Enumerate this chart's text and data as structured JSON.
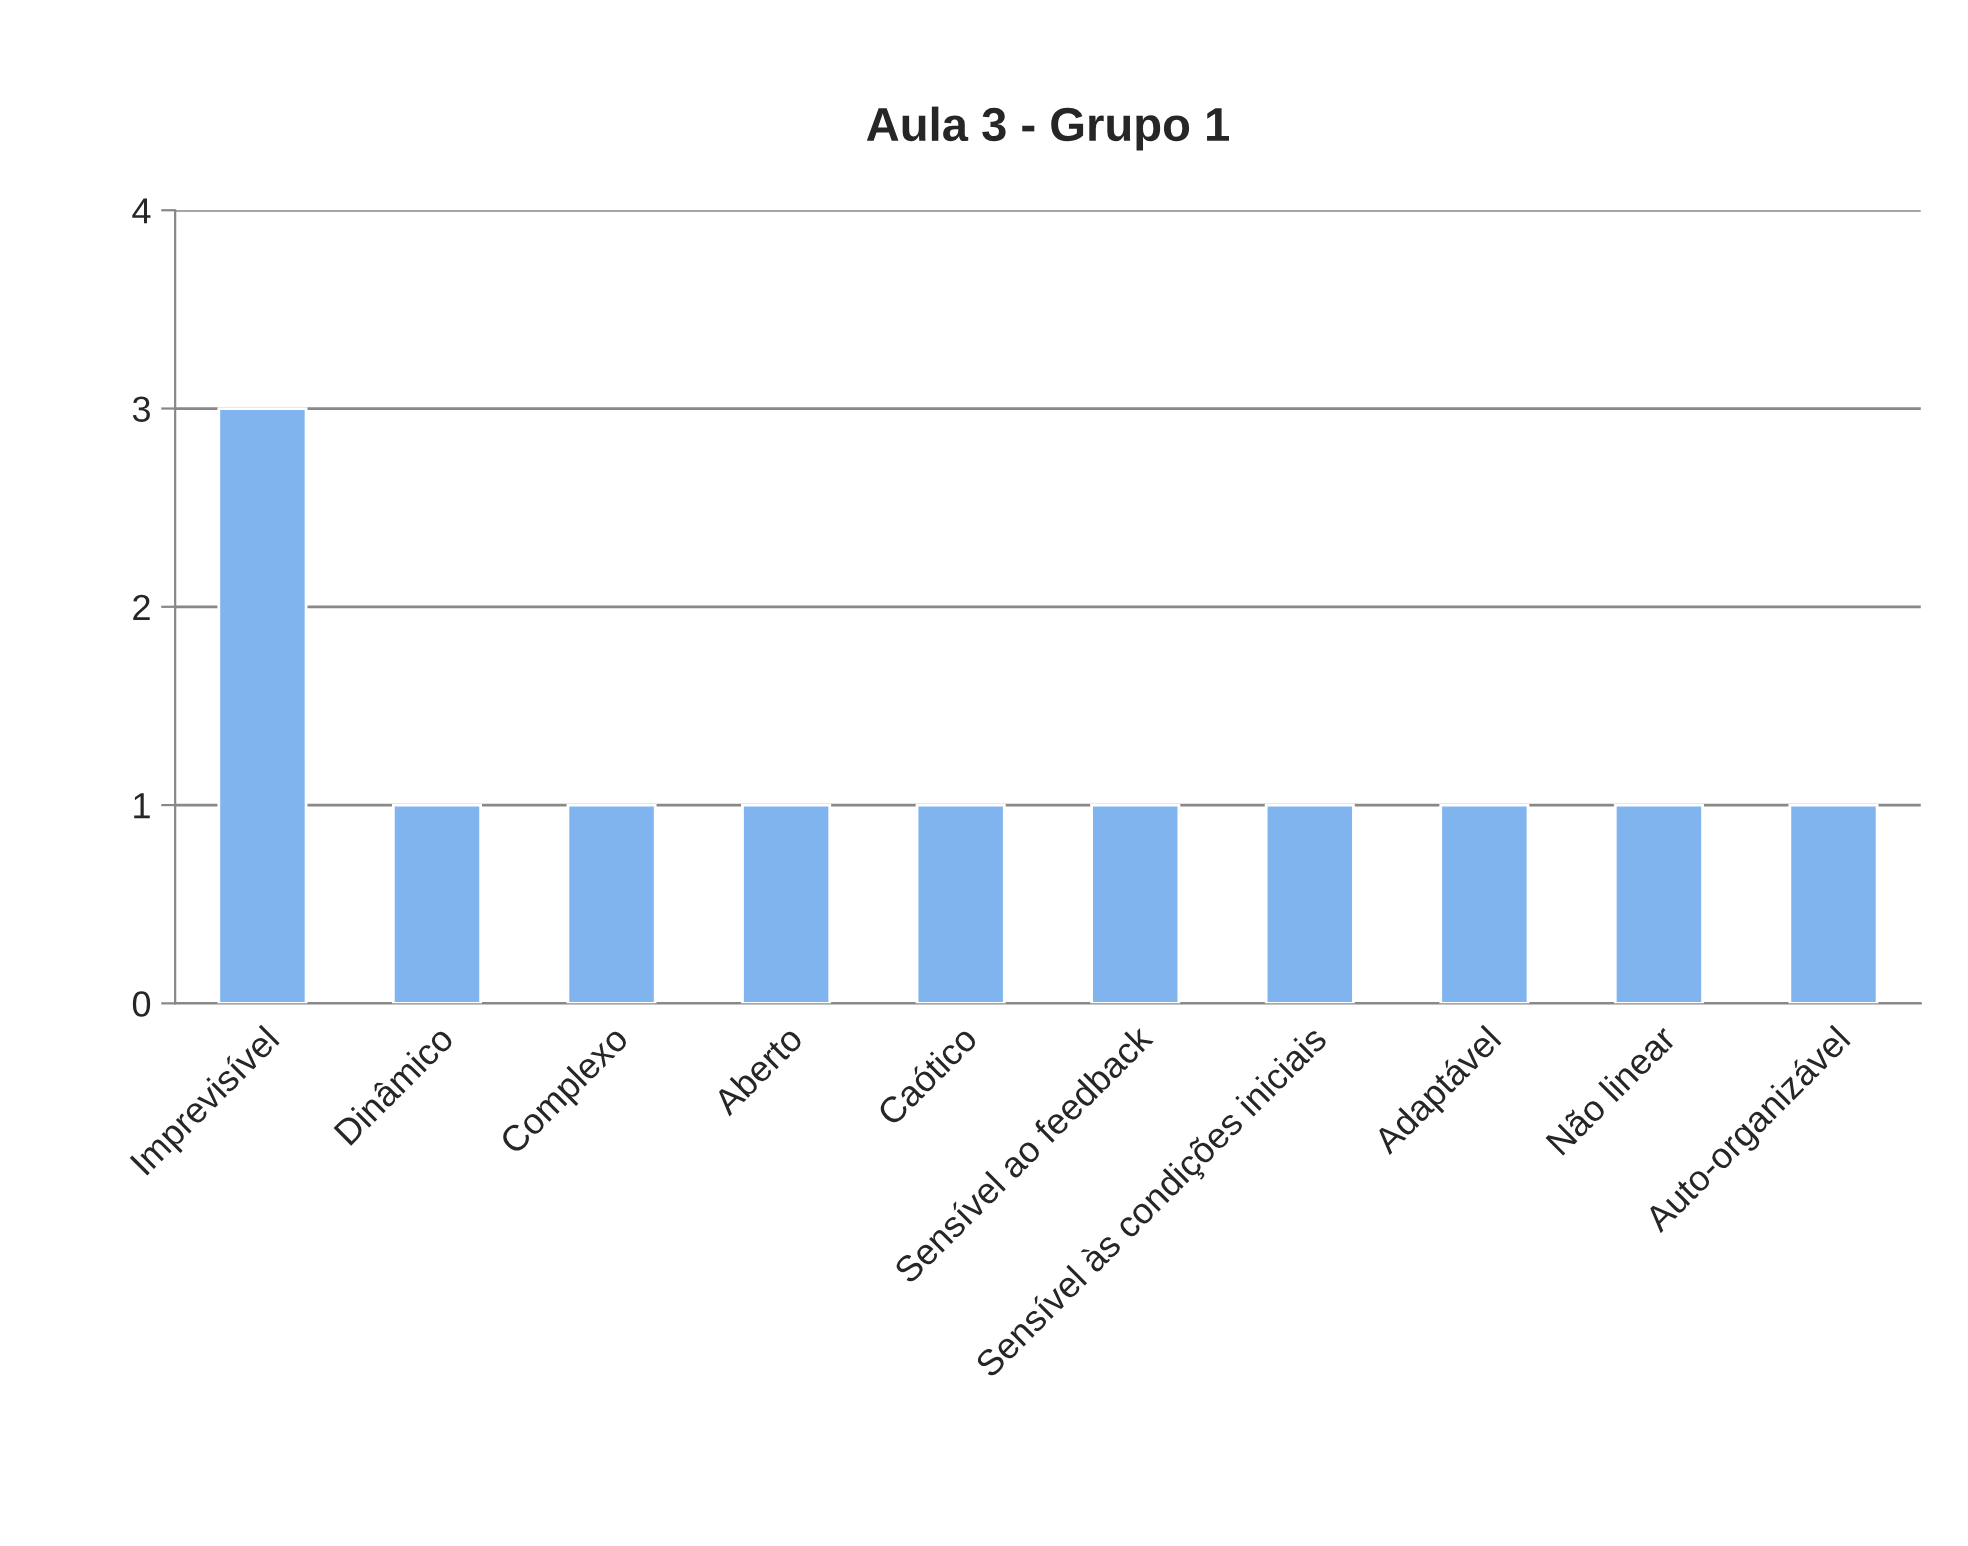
{
  "chart_data": {
    "type": "bar",
    "title": "Aula 3 - Grupo 1",
    "categories": [
      "Imprevisível",
      "Dinâmico",
      "Complexo",
      "Aberto",
      "Caótico",
      "Sensível ao feedback",
      "Sensível às condições iniciais",
      "Adaptável",
      "Não linear",
      "Auto-organizável"
    ],
    "values": [
      3,
      1,
      1,
      1,
      1,
      1,
      1,
      1,
      1,
      1
    ],
    "color": "#80b4ee",
    "ylim": [
      0,
      4
    ],
    "yticks": [
      0,
      1,
      2,
      3,
      4
    ],
    "grid": "y"
  }
}
